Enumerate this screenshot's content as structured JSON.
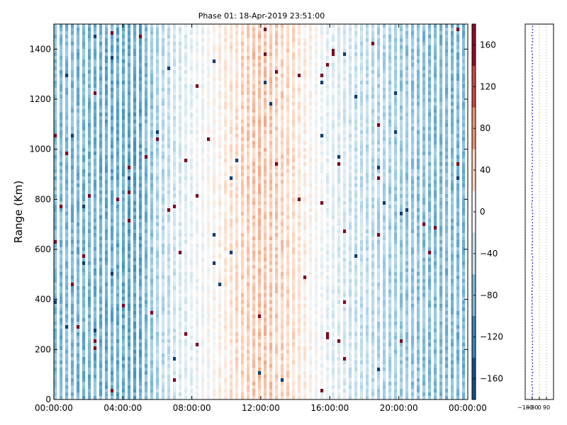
{
  "chart_data": [
    {
      "type": "heatmap",
      "title": "Phase 01: 18-Apr-2019 23:51:00",
      "xlabel": "",
      "ylabel": "Range (Km)",
      "x_ticks": [
        "00:00:00",
        "04:00:00",
        "08:00:00",
        "12:00:00",
        "16:00:00",
        "20:00:00",
        "00:00:00"
      ],
      "x_range_hours": [
        0,
        24
      ],
      "y_ticks": [
        0,
        200,
        400,
        600,
        800,
        1000,
        1200,
        1400
      ],
      "y_range": [
        0,
        1500
      ],
      "colorbar": {
        "ticks": [
          160,
          120,
          80,
          40,
          0,
          -40,
          -80,
          -120,
          -160
        ],
        "range": [
          -180,
          180
        ],
        "colormap": "RdBu_r"
      },
      "phase_profile_by_hour": [
        {
          "hour": 0,
          "phase": -78
        },
        {
          "hour": 2,
          "phase": -85
        },
        {
          "hour": 4,
          "phase": -92
        },
        {
          "hour": 5,
          "phase": -95
        },
        {
          "hour": 6,
          "phase": -55
        },
        {
          "hour": 8,
          "phase": -15
        },
        {
          "hour": 9,
          "phase": 0
        },
        {
          "hour": 10,
          "phase": 22
        },
        {
          "hour": 11,
          "phase": 42
        },
        {
          "hour": 12,
          "phase": 55
        },
        {
          "hour": 13,
          "phase": 45
        },
        {
          "hour": 14,
          "phase": 30
        },
        {
          "hour": 15,
          "phase": 5
        },
        {
          "hour": 16,
          "phase": -20
        },
        {
          "hour": 18,
          "phase": -45
        },
        {
          "hour": 20,
          "phase": -65
        },
        {
          "hour": 22,
          "phase": -78
        },
        {
          "hour": 24,
          "phase": -82
        }
      ],
      "grid": false
    },
    {
      "type": "line",
      "title": "",
      "x_ticks": [
        -180,
        -90,
        0,
        90
      ],
      "x_tick_labels": [
        "−180",
        "−90",
        "0",
        "90"
      ],
      "x_range": [
        -180,
        180
      ],
      "y_range": [
        0,
        1500
      ],
      "grid": "vertical dotted",
      "series_color": "#0000cc",
      "x_center": -90
    }
  ]
}
